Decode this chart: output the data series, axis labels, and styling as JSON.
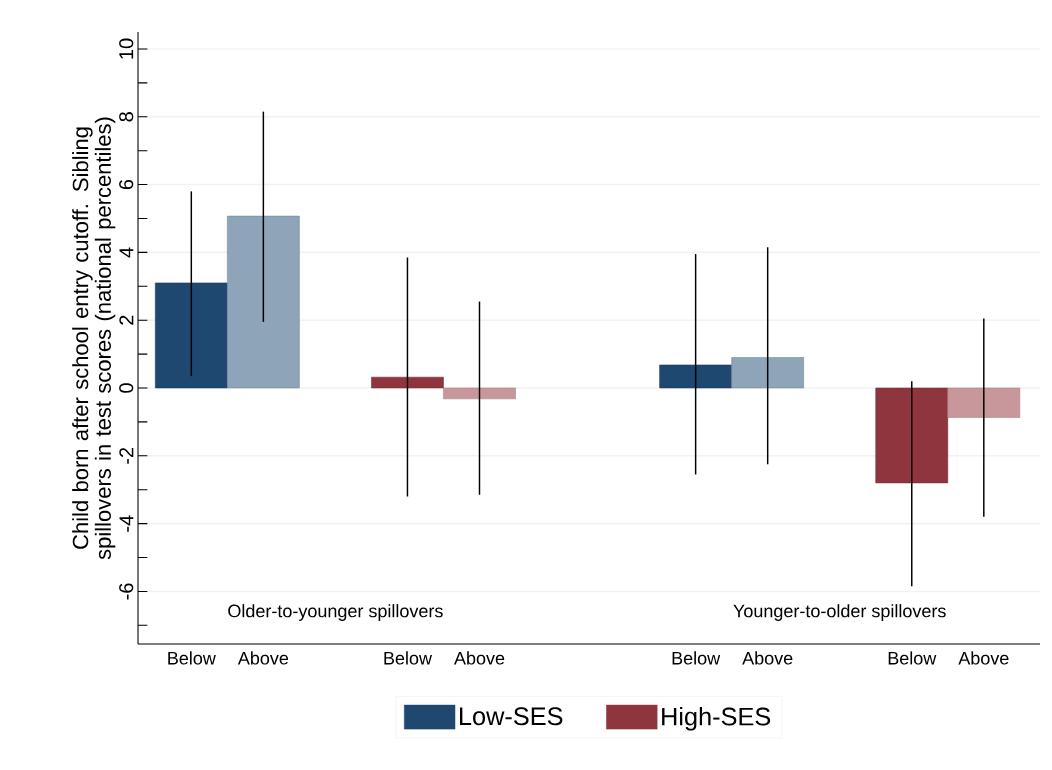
{
  "chart_data": {
    "type": "bar",
    "ylabel": "Child born after school entry cutoff. Sibling spillovers in test scores (national percentiles)",
    "categories": [
      "Below",
      "Above",
      null,
      "Below",
      "Above",
      null,
      null,
      "Below",
      "Above",
      null,
      "Below",
      "Above"
    ],
    "series": [
      {
        "name": "Low-SES",
        "color": "#1e4870",
        "colors": [
          "#1e4870",
          "#8ea4b8",
          null,
          null,
          null,
          null,
          null,
          "#1e4870",
          "#8ea4b8",
          null,
          null,
          null
        ],
        "values": [
          3.1,
          5.07,
          null,
          null,
          null,
          null,
          null,
          0.68,
          0.9,
          null,
          null,
          null
        ],
        "errors": [
          [
            0.35,
            5.8
          ],
          [
            1.95,
            8.15
          ],
          null,
          null,
          null,
          null,
          null,
          [
            -2.55,
            3.95
          ],
          [
            -2.25,
            4.15
          ],
          null,
          null,
          null
        ]
      },
      {
        "name": "High-SES",
        "color": "#8e353e",
        "colors": [
          null,
          null,
          null,
          "#8e353e",
          "#c8979b",
          null,
          null,
          null,
          null,
          null,
          "#8e353e",
          "#c8979b"
        ],
        "values": [
          null,
          null,
          null,
          0.32,
          -0.32,
          null,
          null,
          null,
          null,
          null,
          -2.8,
          -0.87
        ],
        "errors": [
          null,
          null,
          null,
          [
            -3.2,
            3.85
          ],
          [
            -3.15,
            2.55
          ],
          null,
          null,
          null,
          null,
          null,
          [
            -5.85,
            0.2
          ],
          [
            -3.8,
            2.05
          ]
        ]
      }
    ],
    "annotations": [
      "Older-to-younger spillovers",
      "Younger-to-older spillovers"
    ],
    "ylim": [
      -7.55,
      10.5
    ],
    "yticks": [
      {
        "value": -7,
        "label": null
      },
      -6,
      {
        "value": -5,
        "label": null
      },
      -4,
      {
        "value": -3,
        "label": null
      },
      -2,
      {
        "value": -1,
        "label": null
      },
      0,
      {
        "value": 1,
        "label": null
      },
      2,
      {
        "value": 3,
        "label": null
      },
      4,
      {
        "value": 5,
        "label": null
      },
      6,
      {
        "value": 7,
        "label": null
      },
      8,
      {
        "value": 9,
        "label": null
      },
      10
    ],
    "grid": "y",
    "legend": "bottom"
  }
}
